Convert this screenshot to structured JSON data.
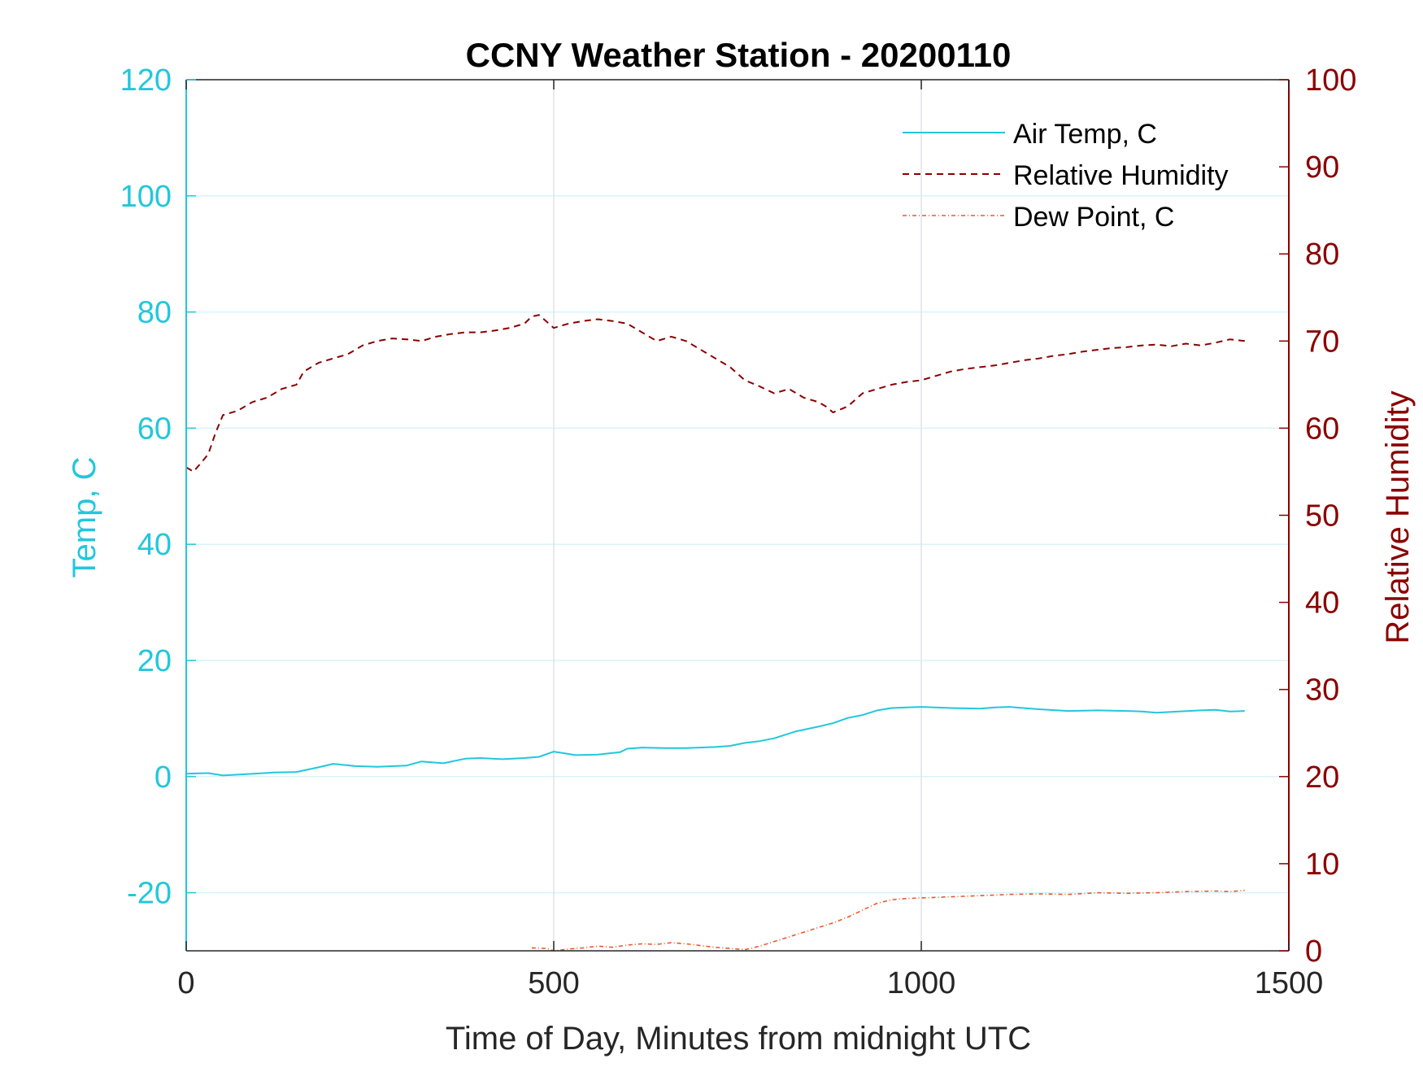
{
  "chart_data": {
    "type": "line",
    "title": "CCNY Weather Station - 20200110",
    "xlabel": "Time of Day, Minutes from midnight UTC",
    "ylabel_left": "Temp, C",
    "ylabel_right": "Relative Humidity",
    "xlim": [
      0,
      1500
    ],
    "ylim_left": [
      -30,
      120
    ],
    "ylim_right": [
      0,
      100
    ],
    "x_ticks": [
      "0",
      "500",
      "1000",
      "1500"
    ],
    "y_ticks_left": [
      "-20",
      "0",
      "20",
      "40",
      "60",
      "80",
      "100",
      "120"
    ],
    "y_ticks_right": [
      "0",
      "10",
      "20",
      "30",
      "40",
      "50",
      "60",
      "70",
      "80",
      "90",
      "100"
    ],
    "grid": true,
    "legend_position": "top-right",
    "colors": {
      "air_temp": "#22c7dc",
      "relative_humidity": "#8b0000",
      "dew_point": "#e8592b",
      "grid": "#dde3ea",
      "grid_minor": "#d8f4fa"
    },
    "series": [
      {
        "name": "Air Temp, C",
        "axis": "left",
        "style": "solid",
        "x": [
          0,
          30,
          50,
          80,
          120,
          150,
          180,
          200,
          230,
          260,
          300,
          320,
          350,
          380,
          400,
          430,
          460,
          480,
          500,
          530,
          560,
          590,
          600,
          620,
          650,
          680,
          720,
          740,
          760,
          780,
          800,
          830,
          860,
          880,
          900,
          920,
          940,
          960,
          980,
          1000,
          1040,
          1080,
          1100,
          1120,
          1160,
          1200,
          1240,
          1280,
          1300,
          1320,
          1350,
          1380,
          1400,
          1420,
          1440
        ],
        "y": [
          0.5,
          0.6,
          0.2,
          0.4,
          0.7,
          0.8,
          1.6,
          2.2,
          1.8,
          1.7,
          1.9,
          2.6,
          2.3,
          3.1,
          3.2,
          3.0,
          3.2,
          3.4,
          4.3,
          3.7,
          3.8,
          4.2,
          4.8,
          5.0,
          4.9,
          4.9,
          5.1,
          5.3,
          5.8,
          6.1,
          6.6,
          7.8,
          8.6,
          9.2,
          10.1,
          10.6,
          11.4,
          11.8,
          11.9,
          12.0,
          11.8,
          11.7,
          11.9,
          12.0,
          11.6,
          11.3,
          11.4,
          11.3,
          11.2,
          11.0,
          11.2,
          11.4,
          11.5,
          11.2,
          11.3
        ]
      },
      {
        "name": "Relative Humidity",
        "axis": "right",
        "style": "dashed",
        "x": [
          0,
          10,
          20,
          30,
          40,
          50,
          70,
          90,
          110,
          130,
          150,
          160,
          180,
          200,
          220,
          240,
          260,
          280,
          300,
          320,
          340,
          360,
          380,
          400,
          420,
          440,
          460,
          470,
          480,
          500,
          520,
          540,
          560,
          580,
          600,
          620,
          640,
          660,
          680,
          700,
          720,
          740,
          760,
          780,
          800,
          820,
          840,
          860,
          870,
          880,
          900,
          920,
          940,
          960,
          980,
          1000,
          1020,
          1040,
          1060,
          1080,
          1100,
          1120,
          1140,
          1160,
          1180,
          1200,
          1220,
          1240,
          1260,
          1280,
          1300,
          1320,
          1340,
          1360,
          1380,
          1400,
          1420,
          1440
        ],
        "y": [
          55.5,
          55.0,
          56.0,
          57.0,
          59.5,
          61.5,
          62.0,
          63.0,
          63.5,
          64.5,
          65.0,
          66.5,
          67.5,
          68.0,
          68.5,
          69.5,
          70.0,
          70.3,
          70.2,
          70.0,
          70.5,
          70.8,
          71.0,
          71.0,
          71.2,
          71.5,
          72.0,
          72.8,
          73.0,
          71.5,
          72.0,
          72.3,
          72.5,
          72.3,
          72.0,
          71.0,
          70.0,
          70.5,
          70.0,
          69.0,
          68.0,
          67.0,
          65.5,
          64.8,
          64.0,
          64.5,
          63.5,
          63.0,
          62.5,
          61.8,
          62.5,
          64.0,
          64.5,
          65.0,
          65.3,
          65.5,
          66.0,
          66.5,
          66.8,
          67.0,
          67.2,
          67.5,
          67.8,
          68.0,
          68.3,
          68.5,
          68.8,
          69.0,
          69.2,
          69.3,
          69.5,
          69.6,
          69.4,
          69.7,
          69.5,
          69.8,
          70.2,
          70.0
        ]
      },
      {
        "name": "Dew Point, C",
        "axis": "left",
        "style": "dash-dot",
        "x": [
          470,
          490,
          500,
          520,
          540,
          560,
          580,
          600,
          620,
          640,
          660,
          680,
          700,
          720,
          740,
          760,
          780,
          800,
          820,
          840,
          860,
          880,
          900,
          920,
          940,
          960,
          980,
          1000,
          1040,
          1080,
          1120,
          1160,
          1200,
          1240,
          1280,
          1320,
          1360,
          1400,
          1420,
          1440
        ],
        "y": [
          -29.5,
          -29.6,
          -30.0,
          -29.7,
          -29.5,
          -29.2,
          -29.4,
          -29.0,
          -28.8,
          -28.9,
          -28.6,
          -28.8,
          -29.1,
          -29.4,
          -29.6,
          -29.8,
          -29.2,
          -28.4,
          -27.6,
          -26.8,
          -26.0,
          -25.2,
          -24.2,
          -23.0,
          -21.8,
          -21.2,
          -21.0,
          -20.9,
          -20.7,
          -20.5,
          -20.3,
          -20.2,
          -20.3,
          -20.0,
          -20.1,
          -20.0,
          -19.8,
          -19.7,
          -19.8,
          -19.6
        ]
      }
    ]
  }
}
